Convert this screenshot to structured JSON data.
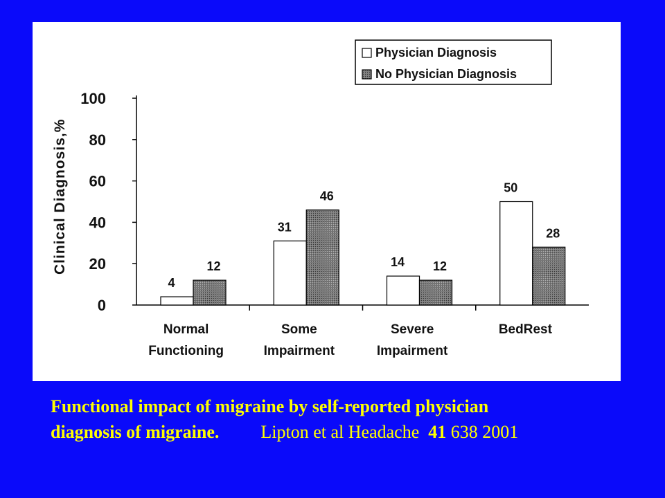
{
  "colors": {
    "background": "#0a0afa",
    "panel": "#ffffff",
    "caption": "#ffff00",
    "series_physician": "#ffffff",
    "series_no_physician": "#7a7a7a"
  },
  "chart_data": {
    "type": "bar",
    "title": "",
    "xlabel": "",
    "ylabel": "Clinical Diagnosis,%",
    "ylim": [
      0,
      100
    ],
    "yticks": [
      "0",
      "20",
      "40",
      "60",
      "80",
      "100"
    ],
    "categories": [
      [
        "Normal",
        "Functioning"
      ],
      [
        "Some",
        "Impairment"
      ],
      [
        "Severe",
        "Impairment"
      ],
      [
        "BedRest"
      ]
    ],
    "series": [
      {
        "name": "Physician Diagnosis",
        "values": [
          4,
          31,
          14,
          50
        ]
      },
      {
        "name": "No Physician Diagnosis",
        "values": [
          12,
          46,
          12,
          28
        ]
      }
    ],
    "legend": "top-right",
    "grid": false
  },
  "caption": {
    "line1": "Functional impact of migraine by self-reported physician",
    "line2_bold": "diagnosis of migraine.",
    "line2_cite_a": "Lipton et al  Headache",
    "line2_cite_vol": "41",
    "line2_cite_b": "638 2001"
  }
}
